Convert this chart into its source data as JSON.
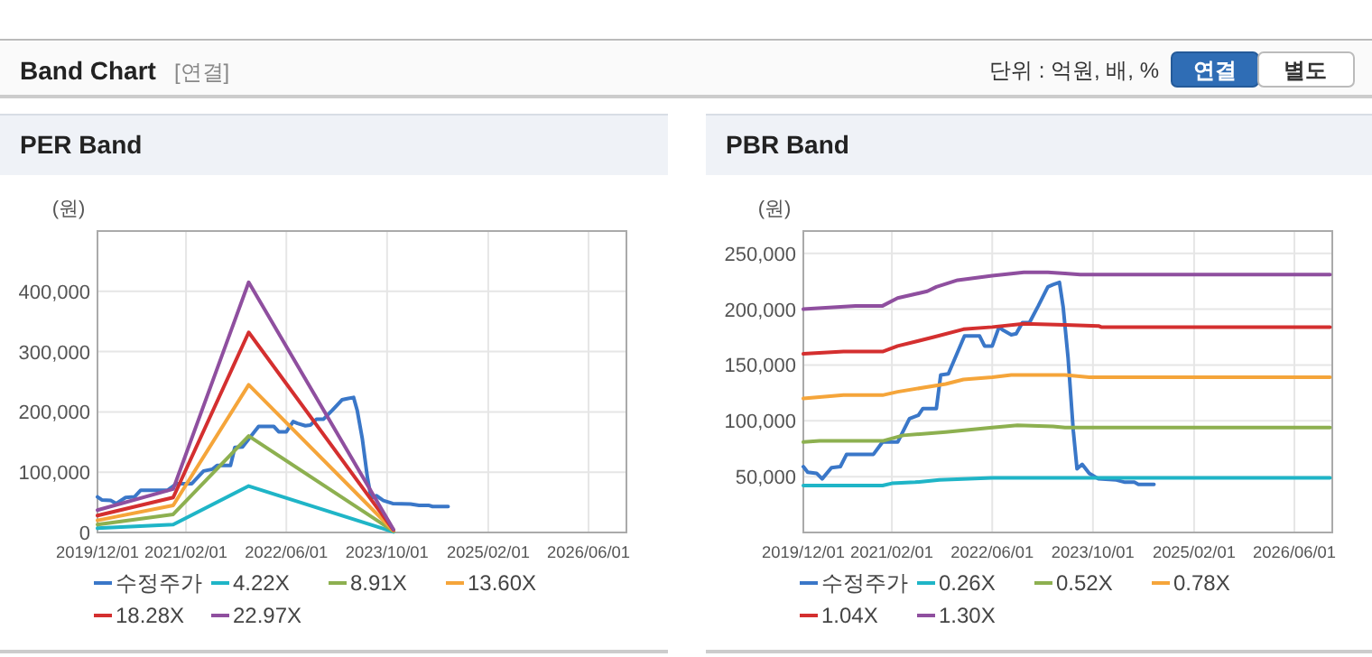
{
  "chart_data": [
    {
      "type": "other",
      "title": "Band Chart",
      "subtitle": "[연결]",
      "annotations": [
        "단위 : 억원, 배, %",
        "연결",
        "별도"
      ]
    },
    {
      "type": "line",
      "title": "PER Band",
      "ylabel": "(원)",
      "grid": true,
      "legend": "bottom",
      "xlim": [
        "2019-12-01",
        "2026-12-01"
      ],
      "xticks": [
        {
          "value": "2019-12-01",
          "label": "2019/12/01"
        },
        {
          "value": "2021-02-01",
          "label": "2021/02/01"
        },
        {
          "value": "2022-06-01",
          "label": "2022/06/01"
        },
        {
          "value": "2023-10-01",
          "label": "2023/10/01"
        },
        {
          "value": "2025-02-01",
          "label": "2025/02/01"
        },
        {
          "value": "2026-06-01",
          "label": "2026/06/01"
        }
      ],
      "ylim": [
        0,
        500000
      ],
      "yticks": [
        0,
        {
          "value": 100000,
          "label": "100,000"
        },
        {
          "value": 200000,
          "label": "200,000"
        },
        {
          "value": 300000,
          "label": "300,000"
        },
        {
          "value": 400000,
          "label": "400,000"
        }
      ],
      "series": [
        {
          "name": "수정주가",
          "color": "#3a77c8",
          "x": [
            "2019-12-01",
            "2019-12-22",
            "2020-02-03",
            "2020-03-01",
            "2020-04-15",
            "2020-05-28",
            "2020-06-27",
            "2020-11-04",
            "2020-12-18",
            "2021-03-01",
            "2021-04-27",
            "2021-06-09",
            "2021-07-01",
            "2021-09-04",
            "2021-09-25",
            "2021-11-01",
            "2022-01-18",
            "2022-04-01",
            "2022-04-25",
            "2022-06-01",
            "2022-07-04",
            "2022-07-25",
            "2022-09-01",
            "2022-09-25",
            "2022-10-25",
            "2022-11-28",
            "2023-01-10",
            "2023-02-25",
            "2023-03-22",
            "2023-04-22",
            "2023-05-10",
            "2023-06-03",
            "2023-06-28",
            "2023-07-16",
            "2023-08-10",
            "2023-09-13",
            "2023-10-28",
            "2024-01-22",
            "2024-03-04",
            "2024-04-18",
            "2024-05-08",
            "2024-07-22"
          ],
          "values": [
            59000,
            54000,
            53000,
            48000,
            58000,
            59000,
            70000,
            70000,
            81000,
            81000,
            102000,
            105000,
            111000,
            111000,
            141000,
            142000,
            176000,
            176000,
            167000,
            167000,
            184000,
            181000,
            177000,
            178000,
            188000,
            188000,
            203000,
            220000,
            222000,
            224000,
            202000,
            156000,
            91000,
            57000,
            61000,
            53000,
            48000,
            47000,
            45000,
            45000,
            43000,
            43000
          ]
        },
        {
          "name": "4.22X",
          "color": "#1fb5c7",
          "x": [
            "2019-12-01",
            "2020-12-01",
            "2021-12-01",
            "2023-11-01"
          ],
          "values": [
            7000,
            13000,
            77000,
            1000
          ]
        },
        {
          "name": "8.91X",
          "color": "#8db050",
          "x": [
            "2019-12-01",
            "2020-12-01",
            "2021-12-01",
            "2023-11-01"
          ],
          "values": [
            13000,
            30000,
            160000,
            2000
          ]
        },
        {
          "name": "13.60X",
          "color": "#f5a53a",
          "x": [
            "2019-12-01",
            "2020-12-01",
            "2021-12-01",
            "2023-11-01"
          ],
          "values": [
            20000,
            45000,
            245000,
            3000
          ]
        },
        {
          "name": "18.28X",
          "color": "#d42f2f",
          "x": [
            "2019-12-01",
            "2020-12-01",
            "2021-12-01",
            "2023-11-01"
          ],
          "values": [
            28000,
            58000,
            332000,
            4000
          ]
        },
        {
          "name": "22.97X",
          "color": "#8f4f9f",
          "x": [
            "2019-12-01",
            "2020-12-01",
            "2021-12-01",
            "2023-11-01"
          ],
          "values": [
            37000,
            72000,
            415000,
            5000
          ]
        }
      ]
    },
    {
      "type": "line",
      "title": "PBR Band",
      "ylabel": "(원)",
      "grid": true,
      "legend": "bottom",
      "xlim": [
        "2019-12-01",
        "2026-12-01"
      ],
      "xticks": [
        {
          "value": "2019-12-01",
          "label": "2019/12/01"
        },
        {
          "value": "2021-02-01",
          "label": "2021/02/01"
        },
        {
          "value": "2022-06-01",
          "label": "2022/06/01"
        },
        {
          "value": "2023-10-01",
          "label": "2023/10/01"
        },
        {
          "value": "2025-02-01",
          "label": "2025/02/01"
        },
        {
          "value": "2026-06-01",
          "label": "2026/06/01"
        }
      ],
      "ylim": [
        0,
        270000
      ],
      "yticks": [
        {
          "value": 50000,
          "label": "50,000"
        },
        {
          "value": 100000,
          "label": "100,000"
        },
        {
          "value": 150000,
          "label": "150,000"
        },
        {
          "value": 200000,
          "label": "200,000"
        },
        {
          "value": 250000,
          "label": "250,000"
        }
      ],
      "series": [
        {
          "name": "수정주가",
          "color": "#3a77c8",
          "x": [
            "2019-12-01",
            "2019-12-22",
            "2020-02-03",
            "2020-03-01",
            "2020-04-15",
            "2020-05-28",
            "2020-06-27",
            "2020-11-04",
            "2020-12-18",
            "2021-03-01",
            "2021-04-27",
            "2021-06-09",
            "2021-07-01",
            "2021-09-04",
            "2021-09-25",
            "2021-11-01",
            "2022-01-18",
            "2022-04-01",
            "2022-04-25",
            "2022-06-01",
            "2022-07-04",
            "2022-07-25",
            "2022-09-01",
            "2022-09-25",
            "2022-10-25",
            "2022-11-28",
            "2023-01-10",
            "2023-02-25",
            "2023-03-22",
            "2023-04-22",
            "2023-05-10",
            "2023-06-03",
            "2023-06-28",
            "2023-07-16",
            "2023-08-10",
            "2023-09-13",
            "2023-10-28",
            "2024-01-22",
            "2024-03-04",
            "2024-04-18",
            "2024-05-08",
            "2024-07-22"
          ],
          "values": [
            59000,
            54000,
            53000,
            48000,
            58000,
            59000,
            70000,
            70000,
            81000,
            81000,
            102000,
            105000,
            111000,
            111000,
            141000,
            142000,
            176000,
            176000,
            167000,
            167000,
            184000,
            181000,
            177000,
            178000,
            188000,
            188000,
            203000,
            220000,
            222000,
            224000,
            202000,
            156000,
            91000,
            57000,
            61000,
            53000,
            48000,
            47000,
            45000,
            45000,
            43000,
            43000
          ]
        },
        {
          "name": "0.26X",
          "color": "#1fb5c7",
          "x": [
            "2019-12-01",
            "2020-12-18",
            "2021-02-01",
            "2021-05-25",
            "2021-09-19",
            "2022-06-01",
            "2026-11-20"
          ],
          "values": [
            42000,
            42000,
            44000,
            45000,
            47000,
            49000,
            49000
          ]
        },
        {
          "name": "0.52X",
          "color": "#8db050",
          "x": [
            "2019-12-01",
            "2020-02-18",
            "2020-12-18",
            "2021-03-28",
            "2021-10-19",
            "2022-06-01",
            "2022-10-01",
            "2023-03-22",
            "2023-05-19",
            "2026-11-20"
          ],
          "values": [
            81000,
            82000,
            82000,
            87000,
            90000,
            94000,
            96000,
            95000,
            94000,
            94000
          ]
        },
        {
          "name": "0.78X",
          "color": "#f5a53a",
          "x": [
            "2019-12-01",
            "2020-06-12",
            "2020-12-18",
            "2021-03-01",
            "2021-10-19",
            "2022-01-13",
            "2022-06-01",
            "2022-09-01",
            "2023-05-19",
            "2023-09-13",
            "2026-11-20"
          ],
          "values": [
            120000,
            123000,
            123000,
            126000,
            133000,
            137000,
            139000,
            141000,
            141000,
            139000,
            139000
          ]
        },
        {
          "name": "1.04X",
          "color": "#d42f2f",
          "x": [
            "2019-12-01",
            "2020-06-12",
            "2020-12-18",
            "2021-03-01",
            "2021-08-22",
            "2022-01-13",
            "2022-06-01",
            "2022-11-01",
            "2023-05-19",
            "2023-10-28",
            "2023-11-10",
            "2026-11-20"
          ],
          "values": [
            160000,
            162000,
            162000,
            167000,
            175000,
            182000,
            184000,
            187000,
            186000,
            185000,
            184000,
            184000
          ]
        },
        {
          "name": "1.30X",
          "color": "#8f4f9f",
          "x": [
            "2019-12-01",
            "2020-08-09",
            "2020-12-18",
            "2021-03-01",
            "2021-07-22",
            "2021-09-04",
            "2021-12-16",
            "2022-06-01",
            "2022-11-01",
            "2023-02-25",
            "2023-05-19",
            "2023-08-01",
            "2026-11-20"
          ],
          "values": [
            200000,
            203000,
            203000,
            210000,
            216000,
            220000,
            226000,
            230000,
            233000,
            233000,
            232000,
            231000,
            231000
          ]
        }
      ]
    }
  ]
}
